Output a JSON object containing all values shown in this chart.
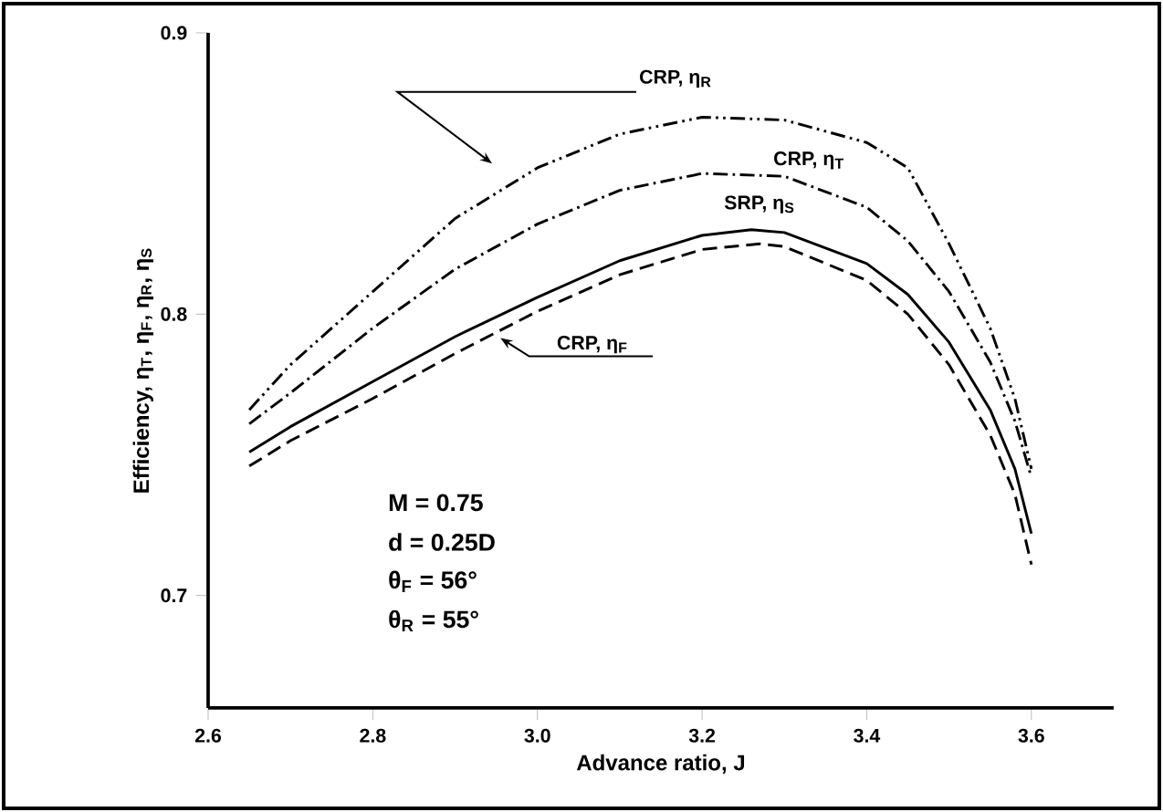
{
  "chart_data": {
    "type": "line",
    "xlabel": "Advance ratio, J",
    "ylabel": "Efficiency, η$_{T}$, η$_{F}$, η$_{R}$, η$_{S}$",
    "xlim": [
      2.6,
      3.7
    ],
    "ylim": [
      0.66,
      0.9
    ],
    "xticks": [
      2.6,
      2.8,
      {
        "value": 3.0,
        "label": "3.0"
      },
      3.2,
      3.4,
      3.6
    ],
    "yticks": [
      0.7,
      0.8,
      0.9
    ],
    "grid": false,
    "legend": false,
    "marker": "none",
    "series": [
      {
        "name": "CRP, η$_{R}$",
        "color": "#000000",
        "line_style": "dashdotdotted",
        "x": [
          2.65,
          2.7,
          2.8,
          2.9,
          3.0,
          3.1,
          3.2,
          3.3,
          3.4,
          3.45,
          3.5,
          3.55,
          3.58,
          3.6
        ],
        "values": [
          0.766,
          0.782,
          0.808,
          0.834,
          0.852,
          0.864,
          0.87,
          0.869,
          0.861,
          0.852,
          0.825,
          0.795,
          0.77,
          0.745
        ]
      },
      {
        "name": "CRP, η$_{T}$",
        "color": "#000000",
        "line_style": "dashdotted",
        "x": [
          2.65,
          2.7,
          2.8,
          2.9,
          3.0,
          3.1,
          3.2,
          3.3,
          3.4,
          3.45,
          3.5,
          3.55,
          3.58,
          3.6
        ],
        "values": [
          0.761,
          0.772,
          0.795,
          0.816,
          0.832,
          0.844,
          0.85,
          0.849,
          0.838,
          0.826,
          0.808,
          0.783,
          0.762,
          0.742
        ]
      },
      {
        "name": "SRP, η$_{S}$",
        "color": "#000000",
        "line_style": "solid",
        "x": [
          2.65,
          2.7,
          2.8,
          2.9,
          3.0,
          3.1,
          3.2,
          3.26,
          3.3,
          3.4,
          3.45,
          3.5,
          3.55,
          3.58,
          3.6
        ],
        "values": [
          0.751,
          0.76,
          0.776,
          0.792,
          0.806,
          0.819,
          0.828,
          0.83,
          0.829,
          0.818,
          0.807,
          0.79,
          0.766,
          0.745,
          0.722
        ]
      },
      {
        "name": "CRP, η$_{F}$",
        "color": "#000000",
        "line_style": "dashed",
        "x": [
          2.65,
          2.7,
          2.8,
          2.9,
          3.0,
          3.1,
          3.2,
          3.27,
          3.3,
          3.4,
          3.45,
          3.5,
          3.55,
          3.58,
          3.6
        ],
        "values": [
          0.746,
          0.755,
          0.77,
          0.786,
          0.801,
          0.814,
          0.823,
          0.825,
          0.824,
          0.812,
          0.8,
          0.782,
          0.757,
          0.736,
          0.711
        ]
      }
    ],
    "annotations": [
      "M  =  0.75",
      "d  =  0.25D",
      "θ$_{F}$  =  56°",
      "θ$_{R}$  =  55°"
    ]
  }
}
